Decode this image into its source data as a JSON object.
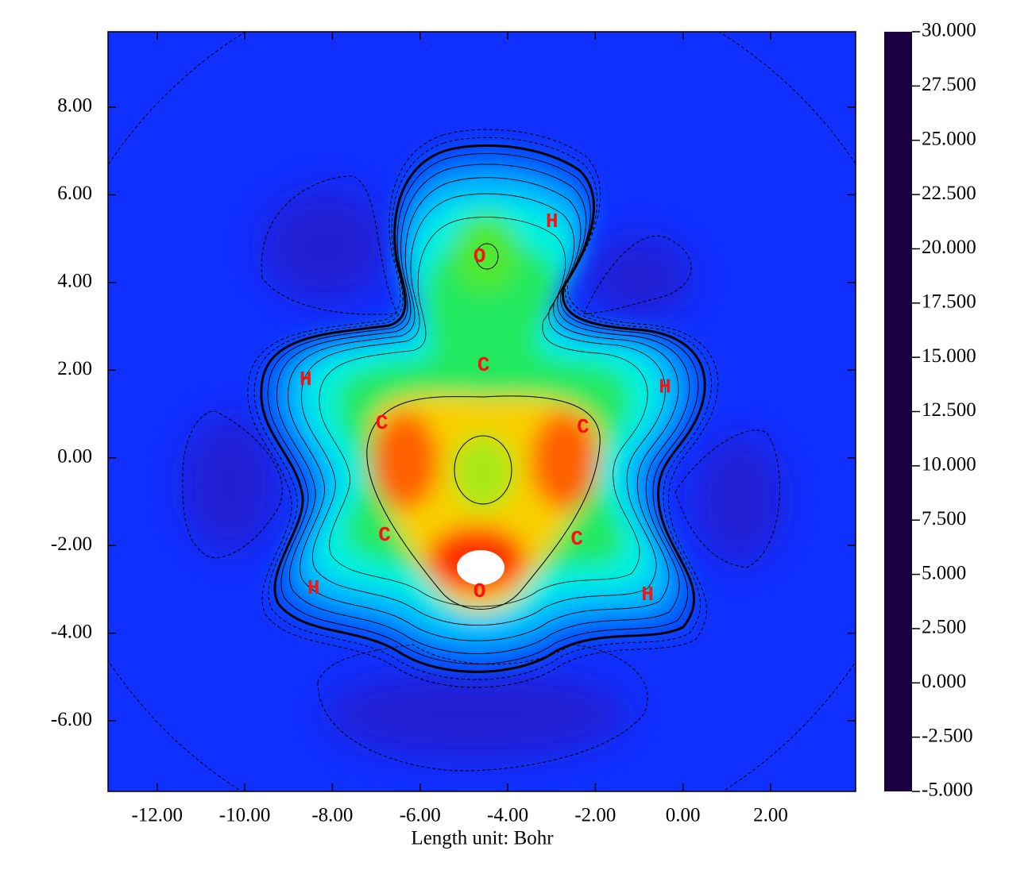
{
  "chart_data": {
    "type": "contour",
    "xlabel": "Length unit: Bohr",
    "xlim": [
      -13.12,
      3.94
    ],
    "ylim": [
      -7.61,
      9.72
    ],
    "xticks": [
      {
        "value": -12,
        "label": "-12.00"
      },
      {
        "value": -10,
        "label": "-10.00"
      },
      {
        "value": -8,
        "label": "-8.00"
      },
      {
        "value": -6,
        "label": "-6.00"
      },
      {
        "value": -4,
        "label": "-4.00"
      },
      {
        "value": -2,
        "label": "-2.00"
      },
      {
        "value": 0,
        "label": "0.00"
      },
      {
        "value": 2,
        "label": "2.00"
      }
    ],
    "yticks": [
      {
        "value": -6,
        "label": "-6.00"
      },
      {
        "value": -4,
        "label": "-4.00"
      },
      {
        "value": -2,
        "label": "-2.00"
      },
      {
        "value": 0,
        "label": "0.00"
      },
      {
        "value": 2,
        "label": "2.00"
      },
      {
        "value": 4,
        "label": "4.00"
      },
      {
        "value": 6,
        "label": "6.00"
      },
      {
        "value": 8,
        "label": "8.00"
      }
    ],
    "colorbar": {
      "lim": [
        -5,
        30
      ],
      "ticks": [
        {
          "value": 30,
          "label": "30.000"
        },
        {
          "value": 27.5,
          "label": "27.500"
        },
        {
          "value": 25,
          "label": "25.000"
        },
        {
          "value": 22.5,
          "label": "22.500"
        },
        {
          "value": 20,
          "label": "20.000"
        },
        {
          "value": 17.5,
          "label": "17.500"
        },
        {
          "value": 15,
          "label": "15.000"
        },
        {
          "value": 12.5,
          "label": "12.500"
        },
        {
          "value": 10,
          "label": "10.000"
        },
        {
          "value": 7.5,
          "label": "7.500"
        },
        {
          "value": 5,
          "label": "5.000"
        },
        {
          "value": 2.5,
          "label": "2.500"
        },
        {
          "value": 0,
          "label": "0.000"
        },
        {
          "value": -2.5,
          "label": "-2.500"
        },
        {
          "value": -5,
          "label": "-5.000"
        }
      ]
    },
    "colormap": [
      {
        "value": -5,
        "color": "#1a0040"
      },
      {
        "value": -2.5,
        "color": "#3a10b0"
      },
      {
        "value": 0,
        "color": "#1030ff"
      },
      {
        "value": 2.5,
        "color": "#0070ff"
      },
      {
        "value": 5,
        "color": "#00b0ff"
      },
      {
        "value": 7.5,
        "color": "#00f0f0"
      },
      {
        "value": 10,
        "color": "#00ffa0"
      },
      {
        "value": 12.5,
        "color": "#00f050"
      },
      {
        "value": 15,
        "color": "#30e000"
      },
      {
        "value": 17.5,
        "color": "#a0f000"
      },
      {
        "value": 20,
        "color": "#f0f000"
      },
      {
        "value": 22.5,
        "color": "#ffc000"
      },
      {
        "value": 25,
        "color": "#ff8000"
      },
      {
        "value": 27.5,
        "color": "#ff4000"
      },
      {
        "value": 30,
        "color": "#ff0000"
      }
    ],
    "atoms": [
      {
        "label": "O",
        "x": -4.64,
        "y": 4.59
      },
      {
        "label": "H",
        "x": -2.99,
        "y": 5.39
      },
      {
        "label": "C",
        "x": -4.55,
        "y": 2.11
      },
      {
        "label": "H",
        "x": -8.61,
        "y": 1.79
      },
      {
        "label": "H",
        "x": -0.41,
        "y": 1.61
      },
      {
        "label": "C",
        "x": -6.87,
        "y": 0.79
      },
      {
        "label": "C",
        "x": -2.28,
        "y": 0.7
      },
      {
        "label": "C",
        "x": -6.81,
        "y": -1.76
      },
      {
        "label": "C",
        "x": -2.42,
        "y": -1.85
      },
      {
        "label": "H",
        "x": -8.43,
        "y": -2.98
      },
      {
        "label": "O",
        "x": -4.64,
        "y": -3.05
      },
      {
        "label": "H",
        "x": -0.81,
        "y": -3.12
      }
    ]
  }
}
